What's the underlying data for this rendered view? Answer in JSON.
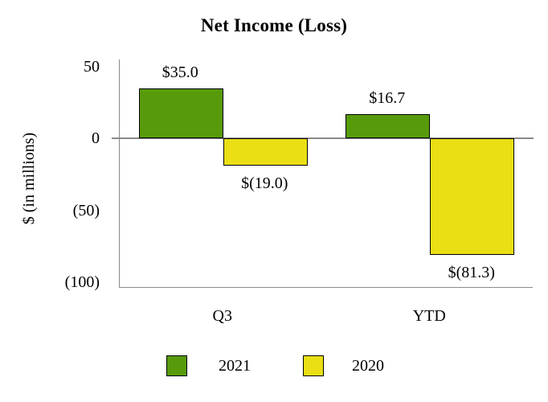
{
  "chart_data": {
    "type": "bar",
    "title": "Net Income (Loss)",
    "ylabel": "$ (in millions)",
    "categories": [
      "Q3",
      "YTD"
    ],
    "series": [
      {
        "name": "2021",
        "color": "#579b0b",
        "values": [
          35.0,
          16.7
        ],
        "value_labels": [
          "$35.0",
          "$16.7"
        ]
      },
      {
        "name": "2020",
        "color": "#e9df14",
        "values": [
          -19.0,
          -81.3
        ],
        "value_labels": [
          "$(19.0)",
          "$(81.3)"
        ]
      }
    ],
    "yticks": [
      {
        "value": 50,
        "label": "50"
      },
      {
        "value": 0,
        "label": "0"
      },
      {
        "value": -50,
        "label": "(50)"
      },
      {
        "value": -100,
        "label": "(100)"
      }
    ],
    "ylim": [
      55,
      -104
    ],
    "axis_color": "#8a8a8a",
    "bar_border_color": "#000000",
    "legend_position": "bottom",
    "grid": false
  }
}
